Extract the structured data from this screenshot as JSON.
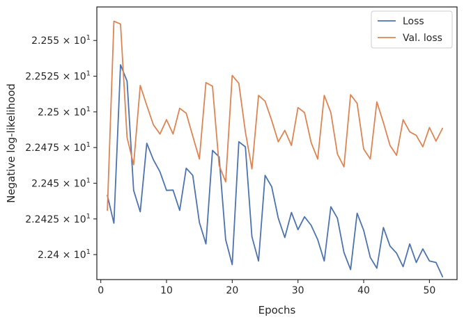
{
  "chart_data": {
    "type": "line",
    "xlabel": "Epochs",
    "ylabel": "Negative log-likelihood",
    "xlim": [
      -0.6,
      54.2
    ],
    "ylim": [
      22.3825,
      22.5735
    ],
    "xticks": [
      0,
      10,
      20,
      30,
      40,
      50
    ],
    "xtick_labels": [
      "0",
      "10",
      "20",
      "30",
      "40",
      "50"
    ],
    "yticks": [
      22.4,
      22.425,
      22.45,
      22.475,
      22.5,
      22.525,
      22.55
    ],
    "ytick_labels": [
      {
        "mantissa": "2.24",
        "exponent": "1"
      },
      {
        "mantissa": "2.2425",
        "exponent": "1"
      },
      {
        "mantissa": "2.245",
        "exponent": "1"
      },
      {
        "mantissa": "2.2475",
        "exponent": "1"
      },
      {
        "mantissa": "2.25",
        "exponent": "1"
      },
      {
        "mantissa": "2.2525",
        "exponent": "1"
      },
      {
        "mantissa": "2.255",
        "exponent": "1"
      }
    ],
    "times_sign": "×",
    "base": "10",
    "grid": false,
    "legend": "top-right",
    "x": [
      1,
      2,
      3,
      4,
      5,
      6,
      7,
      8,
      9,
      10,
      11,
      12,
      13,
      14,
      15,
      16,
      17,
      18,
      19,
      20,
      21,
      22,
      23,
      24,
      25,
      26,
      27,
      28,
      29,
      30,
      31,
      32,
      33,
      34,
      35,
      36,
      37,
      38,
      39,
      40,
      41,
      42,
      43,
      44,
      45,
      46,
      47,
      48,
      49,
      50,
      51,
      52
    ],
    "series": [
      {
        "name": "Loss",
        "color": "#4c72b0",
        "values": [
          22.4415,
          22.422,
          22.533,
          22.5215,
          22.445,
          22.43,
          22.478,
          22.4665,
          22.458,
          22.445,
          22.4452,
          22.431,
          22.4605,
          22.4555,
          22.4225,
          22.4075,
          22.473,
          22.4685,
          22.4105,
          22.393,
          22.479,
          22.4755,
          22.4125,
          22.3955,
          22.4555,
          22.4475,
          22.4255,
          22.412,
          22.4295,
          22.4175,
          22.4265,
          22.4205,
          22.4105,
          22.3955,
          22.4335,
          22.4255,
          22.4015,
          22.3895,
          22.429,
          22.417,
          22.398,
          22.3905,
          22.419,
          22.406,
          22.401,
          22.3915,
          22.4075,
          22.3945,
          22.404,
          22.3955,
          22.3945,
          22.3845
        ]
      },
      {
        "name": "Val. loss",
        "color": "#dd8452",
        "values": [
          22.431,
          22.5635,
          22.5615,
          22.482,
          22.463,
          22.5185,
          22.5045,
          22.491,
          22.4845,
          22.4945,
          22.4845,
          22.5025,
          22.499,
          22.483,
          22.467,
          22.5205,
          22.518,
          22.4625,
          22.451,
          22.5255,
          22.52,
          22.486,
          22.46,
          22.5115,
          22.5075,
          22.494,
          22.479,
          22.487,
          22.4765,
          22.503,
          22.4995,
          22.4785,
          22.467,
          22.5115,
          22.4995,
          22.4705,
          22.4615,
          22.512,
          22.506,
          22.474,
          22.467,
          22.507,
          22.4925,
          22.4765,
          22.4695,
          22.4945,
          22.486,
          22.4835,
          22.4755,
          22.489,
          22.4795,
          22.4885
        ]
      }
    ]
  }
}
